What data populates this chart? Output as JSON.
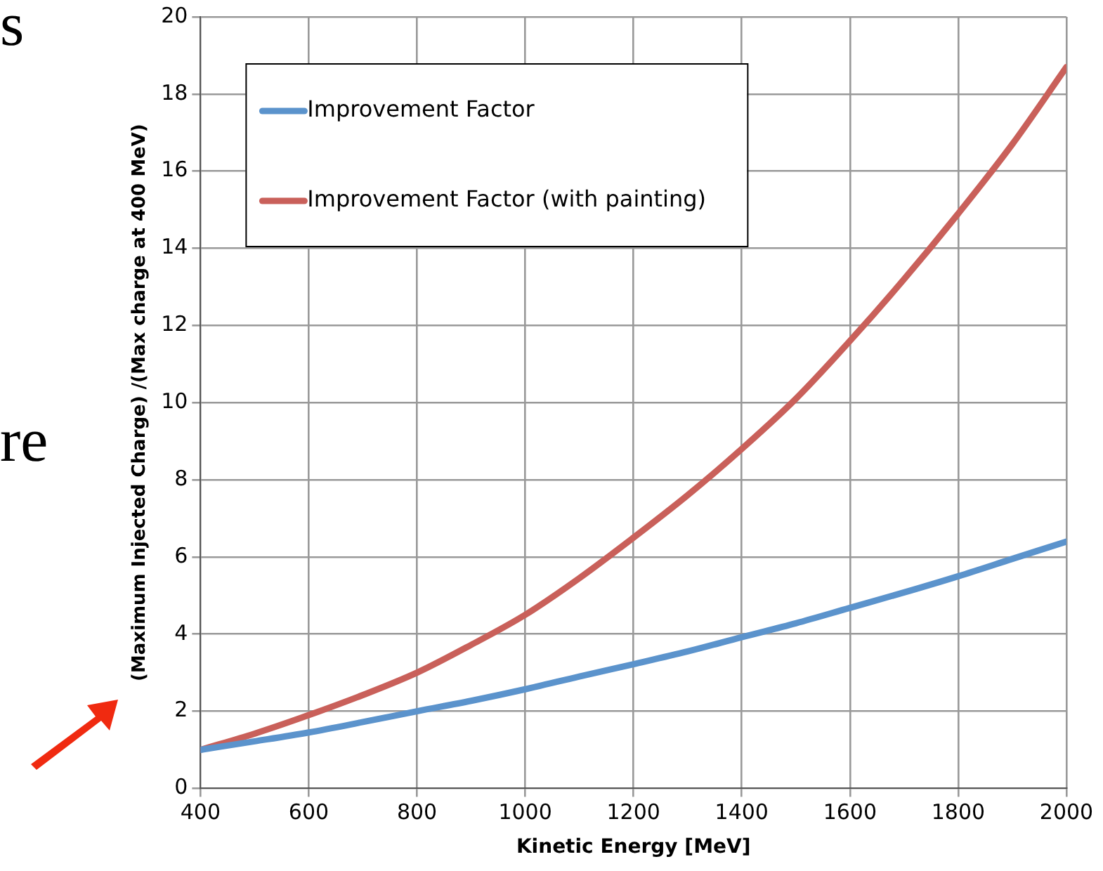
{
  "chart_data": {
    "type": "line",
    "xlabel": "Kinetic Energy [MeV]",
    "ylabel": "(Maximum Injected Charge) /(Max charge at 400 MeV)",
    "x": [
      400,
      500,
      600,
      700,
      800,
      900,
      1000,
      1100,
      1200,
      1300,
      1400,
      1500,
      1600,
      1700,
      1800,
      1900,
      2000
    ],
    "series": [
      {
        "name": "Improvement Factor",
        "color": "#5b93cc",
        "values": [
          1,
          1.22,
          1.45,
          1.72,
          2.0,
          2.27,
          2.57,
          2.9,
          3.22,
          3.55,
          3.92,
          4.28,
          4.68,
          5.08,
          5.5,
          5.95,
          6.4
        ]
      },
      {
        "name": "Improvement Factor (with painting)",
        "color": "#c9605a",
        "values": [
          1,
          1.42,
          1.9,
          2.42,
          3.0,
          3.72,
          4.5,
          5.45,
          6.5,
          7.6,
          8.8,
          10.1,
          11.6,
          13.2,
          14.9,
          16.7,
          18.7
        ]
      }
    ],
    "xlim": [
      400,
      2000
    ],
    "xticks": [
      400,
      600,
      800,
      1000,
      1200,
      1400,
      1600,
      1800,
      2000
    ],
    "ylim": [
      0,
      20
    ],
    "yticks": [
      0,
      2,
      4,
      6,
      8,
      10,
      12,
      14,
      16,
      18,
      20
    ],
    "grid": true,
    "legend": "top left",
    "line_style": "solid",
    "marker": "none",
    "annotations": [
      "s",
      "re"
    ]
  }
}
